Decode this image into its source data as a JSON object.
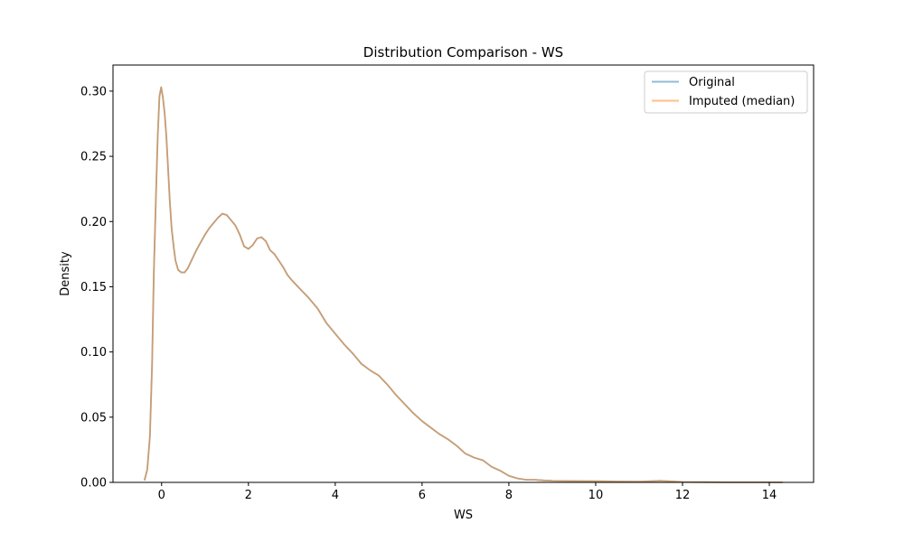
{
  "chart_data": {
    "type": "line",
    "title": "Distribution Comparison - WS",
    "xlabel": "WS",
    "ylabel": "Density",
    "xlim": [
      -1.12,
      15.02
    ],
    "ylim": [
      0.0,
      0.32
    ],
    "xticks": [
      0,
      2,
      4,
      6,
      8,
      10,
      12,
      14
    ],
    "yticks": [
      0.0,
      0.05,
      0.1,
      0.15,
      0.2,
      0.25,
      0.3
    ],
    "xtick_labels": [
      "0",
      "2",
      "4",
      "6",
      "8",
      "10",
      "12",
      "14"
    ],
    "ytick_labels": [
      "0.00",
      "0.05",
      "0.10",
      "0.15",
      "0.20",
      "0.25",
      "0.30"
    ],
    "grid": false,
    "legend_position": "top-right",
    "series": [
      {
        "name": "Original",
        "color": "#1f77b4",
        "opacity": 0.5,
        "x": [
          -0.39,
          -0.33,
          -0.27,
          -0.22,
          -0.18,
          -0.13,
          -0.09,
          -0.05,
          -0.01,
          0.03,
          0.07,
          0.11,
          0.15,
          0.19,
          0.23,
          0.28,
          0.32,
          0.38,
          0.45,
          0.53,
          0.6,
          0.7,
          0.8,
          0.9,
          1.0,
          1.1,
          1.2,
          1.3,
          1.4,
          1.5,
          1.6,
          1.7,
          1.8,
          1.9,
          2.0,
          2.1,
          2.2,
          2.3,
          2.4,
          2.5,
          2.6,
          2.7,
          2.8,
          2.9,
          3.0,
          3.2,
          3.4,
          3.6,
          3.8,
          4.0,
          4.2,
          4.4,
          4.6,
          4.8,
          5.0,
          5.2,
          5.4,
          5.6,
          5.8,
          6.0,
          6.2,
          6.4,
          6.6,
          6.8,
          7.0,
          7.2,
          7.4,
          7.6,
          7.8,
          8.0,
          8.2,
          8.4,
          8.6,
          8.8,
          9.0,
          9.5,
          10.0,
          10.5,
          11.0,
          11.5,
          12.0,
          12.5,
          13.0,
          13.5,
          14.0,
          14.3
        ],
        "y": [
          0.002,
          0.01,
          0.035,
          0.09,
          0.16,
          0.22,
          0.265,
          0.296,
          0.303,
          0.295,
          0.283,
          0.265,
          0.24,
          0.215,
          0.195,
          0.18,
          0.17,
          0.163,
          0.161,
          0.161,
          0.164,
          0.171,
          0.178,
          0.184,
          0.19,
          0.195,
          0.199,
          0.203,
          0.206,
          0.205,
          0.201,
          0.197,
          0.19,
          0.181,
          0.179,
          0.182,
          0.187,
          0.188,
          0.185,
          0.178,
          0.175,
          0.17,
          0.165,
          0.159,
          0.155,
          0.148,
          0.141,
          0.133,
          0.122,
          0.114,
          0.106,
          0.099,
          0.091,
          0.086,
          0.082,
          0.075,
          0.067,
          0.06,
          0.053,
          0.047,
          0.042,
          0.037,
          0.033,
          0.028,
          0.022,
          0.019,
          0.017,
          0.012,
          0.009,
          0.005,
          0.003,
          0.002,
          0.002,
          0.0015,
          0.0012,
          0.001,
          0.0009,
          0.0007,
          0.0006,
          0.0012,
          0.0003,
          0.0002,
          0.0001,
          0.0001,
          0.0001,
          0.0
        ]
      },
      {
        "name": "Imputed (median)",
        "color": "#ff7f0e",
        "opacity": 0.5,
        "x": [
          -0.39,
          -0.33,
          -0.27,
          -0.22,
          -0.18,
          -0.13,
          -0.09,
          -0.05,
          -0.01,
          0.03,
          0.07,
          0.11,
          0.15,
          0.19,
          0.23,
          0.28,
          0.32,
          0.38,
          0.45,
          0.53,
          0.6,
          0.7,
          0.8,
          0.9,
          1.0,
          1.1,
          1.2,
          1.3,
          1.4,
          1.5,
          1.6,
          1.7,
          1.8,
          1.9,
          2.0,
          2.1,
          2.2,
          2.3,
          2.4,
          2.5,
          2.6,
          2.7,
          2.8,
          2.9,
          3.0,
          3.2,
          3.4,
          3.6,
          3.8,
          4.0,
          4.2,
          4.4,
          4.6,
          4.8,
          5.0,
          5.2,
          5.4,
          5.6,
          5.8,
          6.0,
          6.2,
          6.4,
          6.6,
          6.8,
          7.0,
          7.2,
          7.4,
          7.6,
          7.8,
          8.0,
          8.2,
          8.4,
          8.6,
          8.8,
          9.0,
          9.5,
          10.0,
          10.5,
          11.0,
          11.5,
          12.0,
          12.5,
          13.0,
          13.5,
          14.0,
          14.3
        ],
        "y": [
          0.002,
          0.01,
          0.035,
          0.09,
          0.16,
          0.22,
          0.265,
          0.296,
          0.303,
          0.295,
          0.283,
          0.265,
          0.24,
          0.215,
          0.195,
          0.18,
          0.17,
          0.163,
          0.161,
          0.161,
          0.164,
          0.171,
          0.178,
          0.184,
          0.19,
          0.195,
          0.199,
          0.203,
          0.206,
          0.205,
          0.201,
          0.197,
          0.19,
          0.181,
          0.179,
          0.182,
          0.187,
          0.188,
          0.185,
          0.178,
          0.175,
          0.17,
          0.165,
          0.159,
          0.155,
          0.148,
          0.141,
          0.133,
          0.122,
          0.114,
          0.106,
          0.099,
          0.091,
          0.086,
          0.082,
          0.075,
          0.067,
          0.06,
          0.053,
          0.047,
          0.042,
          0.037,
          0.033,
          0.028,
          0.022,
          0.019,
          0.017,
          0.012,
          0.009,
          0.005,
          0.003,
          0.002,
          0.002,
          0.0015,
          0.0012,
          0.001,
          0.0009,
          0.0007,
          0.0006,
          0.0012,
          0.0003,
          0.0002,
          0.0001,
          0.0001,
          0.0001,
          0.0
        ]
      }
    ]
  }
}
